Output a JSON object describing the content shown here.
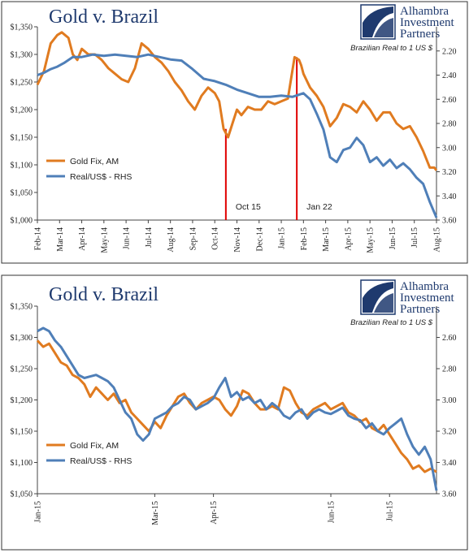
{
  "colors": {
    "gold": "#e07b20",
    "real": "#4f7fb8",
    "marker": "#e00000",
    "title": "#1f3a6e",
    "frame": "#333333"
  },
  "logo": {
    "line1": "Alhambra",
    "line2": "Investment",
    "line3": "Partners",
    "icon": "alhambra-logo-icon"
  },
  "chart_data": [
    {
      "type": "line",
      "title": "Gold v. Brazil",
      "subtitle": "Brazilian Real to 1 US $",
      "y_left_ticks": [
        "$1,000",
        "$1,050",
        "$1,100",
        "$1,150",
        "$1,200",
        "$1,250",
        "$1,300",
        "$1,350"
      ],
      "y_right_ticks": [
        "2.20",
        "2.40",
        "2.60",
        "2.80",
        "3.00",
        "3.20",
        "3.40",
        "3.60"
      ],
      "x_ticks": [
        "Feb-14",
        "Mar-14",
        "Apr-14",
        "May-14",
        "Jun-14",
        "Jul-14",
        "Aug-14",
        "Sep-14",
        "Oct-14",
        "Nov-14",
        "Dec-14",
        "Jan-15",
        "Feb-15",
        "Mar-15",
        "Apr-15",
        "May-15",
        "Jun-15",
        "Jul-15",
        "Aug-15"
      ],
      "ylim_left": [
        1000,
        1350
      ],
      "ylim_right_inverted": [
        2.0,
        3.6
      ],
      "grid": false,
      "legend_position": "left-middle",
      "series": [
        {
          "name": "Gold Fix, AM",
          "axis": "left",
          "x": [
            0,
            0.3,
            0.6,
            0.9,
            1.1,
            1.4,
            1.6,
            1.8,
            2.0,
            2.3,
            2.6,
            2.9,
            3.2,
            3.5,
            3.8,
            4.1,
            4.4,
            4.7,
            5.0,
            5.3,
            5.6,
            5.9,
            6.2,
            6.5,
            6.8,
            7.1,
            7.4,
            7.7,
            8.0,
            8.2,
            8.4,
            8.6,
            8.8,
            9.0,
            9.2,
            9.5,
            9.8,
            10.1,
            10.4,
            10.7,
            11.0,
            11.3,
            11.6,
            11.8,
            11.9,
            12.0,
            12.3,
            12.6,
            12.9,
            13.2,
            13.5,
            13.8,
            14.1,
            14.4,
            14.7,
            15.0,
            15.3,
            15.6,
            15.9,
            16.2,
            16.5,
            16.8,
            17.1,
            17.4,
            17.7,
            17.9,
            18.0
          ],
          "values": [
            1245,
            1270,
            1320,
            1335,
            1340,
            1330,
            1300,
            1290,
            1310,
            1300,
            1300,
            1290,
            1275,
            1265,
            1255,
            1250,
            1275,
            1320,
            1310,
            1295,
            1285,
            1270,
            1250,
            1235,
            1215,
            1200,
            1225,
            1240,
            1230,
            1215,
            1165,
            1150,
            1175,
            1200,
            1190,
            1205,
            1200,
            1200,
            1215,
            1210,
            1215,
            1220,
            1295,
            1290,
            1280,
            1265,
            1240,
            1225,
            1205,
            1170,
            1185,
            1210,
            1205,
            1195,
            1215,
            1200,
            1180,
            1195,
            1195,
            1175,
            1165,
            1170,
            1150,
            1125,
            1095,
            1095,
            1090
          ]
        },
        {
          "name": "Real/US$ - RHS",
          "axis": "right",
          "x": [
            0,
            0.3,
            0.6,
            0.9,
            1.2,
            1.6,
            2.0,
            2.5,
            3.0,
            3.5,
            4.0,
            4.5,
            5.0,
            5.5,
            6.0,
            6.5,
            7.0,
            7.5,
            8.0,
            8.5,
            9.0,
            9.5,
            10.0,
            10.5,
            11.0,
            11.5,
            12.0,
            12.3,
            12.6,
            12.9,
            13.2,
            13.5,
            13.8,
            14.1,
            14.4,
            14.7,
            15.0,
            15.3,
            15.6,
            15.9,
            16.2,
            16.5,
            16.8,
            17.1,
            17.4,
            17.7,
            18.0
          ],
          "values": [
            2.4,
            2.38,
            2.35,
            2.33,
            2.3,
            2.25,
            2.25,
            2.23,
            2.24,
            2.23,
            2.24,
            2.25,
            2.23,
            2.25,
            2.27,
            2.28,
            2.35,
            2.43,
            2.45,
            2.48,
            2.52,
            2.55,
            2.58,
            2.58,
            2.57,
            2.58,
            2.55,
            2.6,
            2.72,
            2.85,
            3.08,
            3.12,
            3.02,
            3.0,
            2.92,
            2.98,
            3.12,
            3.08,
            3.15,
            3.1,
            3.17,
            3.13,
            3.18,
            3.25,
            3.3,
            3.45,
            3.58
          ]
        }
      ],
      "annotations": [
        {
          "label": "Oct 15",
          "x": 8.5
        },
        {
          "label": "Jan 22",
          "x": 11.7
        }
      ]
    },
    {
      "type": "line",
      "title": "Gold v. Brazil",
      "subtitle": "Brazilian Real to 1 US $",
      "y_left_ticks": [
        "$1,050",
        "$1,100",
        "$1,150",
        "$1,200",
        "$1,250",
        "$1,300",
        "$1,350"
      ],
      "y_right_ticks": [
        "2.60",
        "2.80",
        "3.00",
        "3.20",
        "3.40",
        "3.60"
      ],
      "x_ticks": [
        "Jan-15",
        "Mar-15",
        "Apr-15",
        "Jun-15",
        "Jul-15"
      ],
      "x_tick_positions": [
        0,
        2,
        3,
        5,
        6
      ],
      "ylim_left": [
        1050,
        1350
      ],
      "ylim_right_inverted": [
        2.4,
        3.6
      ],
      "grid": false,
      "legend_position": "left-middle",
      "series": [
        {
          "name": "Gold Fix, AM",
          "axis": "left",
          "x": [
            0,
            0.1,
            0.2,
            0.3,
            0.4,
            0.5,
            0.6,
            0.7,
            0.8,
            0.9,
            1.0,
            1.1,
            1.2,
            1.3,
            1.4,
            1.5,
            1.6,
            1.7,
            1.8,
            1.9,
            2.0,
            2.1,
            2.2,
            2.3,
            2.4,
            2.5,
            2.6,
            2.7,
            2.8,
            2.9,
            3.0,
            3.1,
            3.2,
            3.3,
            3.4,
            3.5,
            3.6,
            3.7,
            3.8,
            3.9,
            4.0,
            4.1,
            4.2,
            4.3,
            4.4,
            4.5,
            4.6,
            4.7,
            4.8,
            4.9,
            5.0,
            5.1,
            5.2,
            5.3,
            5.4,
            5.5,
            5.6,
            5.7,
            5.8,
            5.9,
            6.0,
            6.1,
            6.2,
            6.3,
            6.4,
            6.5,
            6.6,
            6.7,
            6.8
          ],
          "values": [
            1295,
            1285,
            1290,
            1275,
            1260,
            1255,
            1240,
            1235,
            1225,
            1205,
            1220,
            1210,
            1200,
            1210,
            1195,
            1200,
            1180,
            1170,
            1160,
            1150,
            1165,
            1155,
            1175,
            1190,
            1205,
            1210,
            1195,
            1185,
            1195,
            1200,
            1205,
            1200,
            1185,
            1175,
            1190,
            1215,
            1210,
            1195,
            1185,
            1185,
            1190,
            1185,
            1220,
            1215,
            1195,
            1180,
            1175,
            1185,
            1190,
            1195,
            1185,
            1190,
            1195,
            1180,
            1175,
            1165,
            1170,
            1155,
            1150,
            1160,
            1145,
            1130,
            1115,
            1105,
            1090,
            1095,
            1085,
            1090,
            1085
          ]
        },
        {
          "name": "Real/US$ - RHS",
          "axis": "right",
          "x": [
            0,
            0.1,
            0.2,
            0.3,
            0.4,
            0.5,
            0.6,
            0.7,
            0.8,
            0.9,
            1.0,
            1.1,
            1.2,
            1.3,
            1.4,
            1.5,
            1.6,
            1.7,
            1.8,
            1.9,
            2.0,
            2.1,
            2.2,
            2.3,
            2.4,
            2.5,
            2.6,
            2.7,
            2.8,
            2.9,
            3.0,
            3.1,
            3.2,
            3.3,
            3.4,
            3.5,
            3.6,
            3.7,
            3.8,
            3.9,
            4.0,
            4.1,
            4.2,
            4.3,
            4.4,
            4.5,
            4.6,
            4.7,
            4.8,
            4.9,
            5.0,
            5.1,
            5.2,
            5.3,
            5.4,
            5.5,
            5.6,
            5.7,
            5.8,
            5.9,
            6.0,
            6.1,
            6.2,
            6.3,
            6.4,
            6.5,
            6.6,
            6.7,
            6.8
          ],
          "values": [
            2.56,
            2.54,
            2.56,
            2.62,
            2.66,
            2.72,
            2.78,
            2.84,
            2.86,
            2.85,
            2.84,
            2.86,
            2.88,
            2.92,
            3.0,
            3.08,
            3.12,
            3.22,
            3.26,
            3.22,
            3.12,
            3.1,
            3.08,
            3.04,
            3.02,
            2.98,
            3.0,
            3.06,
            3.04,
            3.02,
            2.99,
            2.92,
            2.86,
            2.98,
            2.95,
            3.0,
            2.98,
            3.02,
            3.0,
            3.06,
            3.02,
            3.05,
            3.1,
            3.12,
            3.08,
            3.06,
            3.12,
            3.08,
            3.06,
            3.08,
            3.09,
            3.07,
            3.05,
            3.1,
            3.12,
            3.13,
            3.18,
            3.15,
            3.2,
            3.22,
            3.18,
            3.15,
            3.12,
            3.22,
            3.3,
            3.35,
            3.3,
            3.38,
            3.58
          ]
        }
      ],
      "annotations": []
    }
  ]
}
